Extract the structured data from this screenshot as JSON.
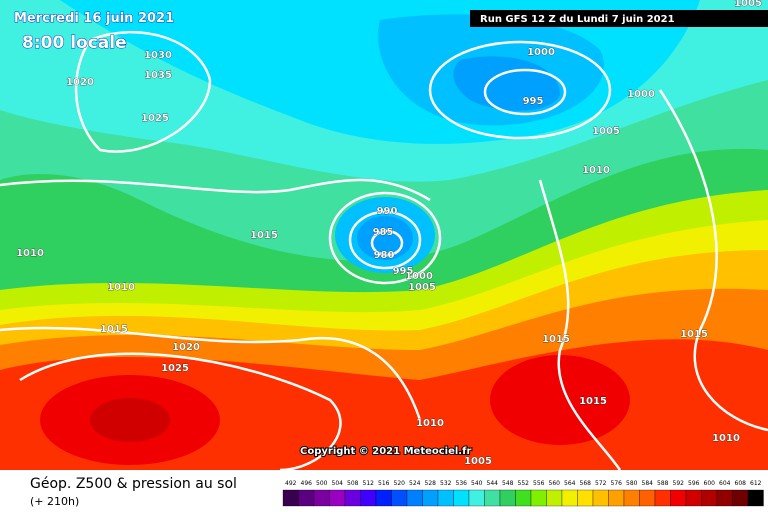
{
  "header": {
    "date": "Mercredi 16 juin 2021",
    "time": "8:00 locale",
    "run": "Run GFS 12 Z du Lundi 7 juin 2021"
  },
  "isobar_labels": [
    "1030",
    "1035",
    "1020",
    "1025",
    "1000",
    "995",
    "1000",
    "1005",
    "1010",
    "990",
    "985",
    "980",
    "995",
    "1000",
    "1005",
    "1015",
    "1010",
    "1010",
    "1015",
    "1020",
    "1025",
    "1015",
    "1015",
    "1015",
    "1010",
    "1010",
    "1005",
    "1005"
  ],
  "copyright": "Copyright © 2021 Meteociel.fr",
  "footer": {
    "title": "Géop. Z500 & pression au sol",
    "lead": "(+ 210h)"
  },
  "scale": {
    "labels": [
      "492",
      "496",
      "500",
      "504",
      "508",
      "512",
      "516",
      "520",
      "524",
      "528",
      "532",
      "536",
      "540",
      "544",
      "548",
      "552",
      "556",
      "560",
      "564",
      "568",
      "572",
      "576",
      "580",
      "584",
      "588",
      "592",
      "596",
      "600",
      "604",
      "608",
      "612"
    ],
    "colors": [
      "#3a0050",
      "#5a0080",
      "#7a00a0",
      "#9a00c0",
      "#6a00e0",
      "#4000ff",
      "#0020ff",
      "#0050ff",
      "#0080ff",
      "#00a0ff",
      "#00c0ff",
      "#00e0ff",
      "#40f0e0",
      "#40e0a0",
      "#30d060",
      "#40e020",
      "#80f000",
      "#c0f000",
      "#f0f000",
      "#ffe000",
      "#ffc000",
      "#ffa000",
      "#ff8000",
      "#ff6000",
      "#ff3000",
      "#f00000",
      "#d00000",
      "#b00000",
      "#900000",
      "#700000",
      "#000000"
    ]
  }
}
